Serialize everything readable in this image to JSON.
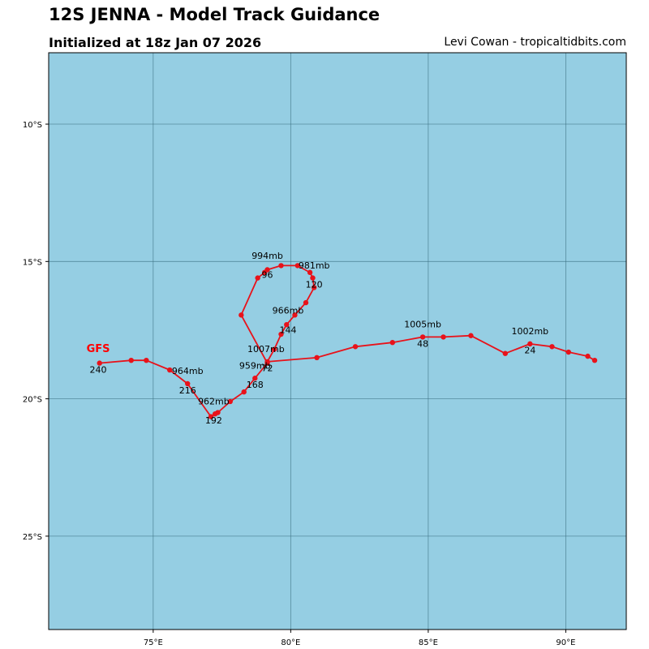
{
  "header": {
    "title": "12S JENNA - Model Track Guidance",
    "subtitle": "Initialized at 18z Jan 07 2026",
    "credit": "Levi Cowan - tropicaltidbits.com"
  },
  "map": {
    "ocean_color": "#95cee3",
    "grid_color": "#3b6f80",
    "track_color": "#e8121a",
    "lon_range": [
      71.2,
      92.2
    ],
    "lat_range": [
      -28.4,
      -7.4
    ],
    "lon_ticks": [
      {
        "v": 75,
        "label": "75°E"
      },
      {
        "v": 80,
        "label": "80°E"
      },
      {
        "v": 85,
        "label": "85°E"
      },
      {
        "v": 90,
        "label": "90°E"
      }
    ],
    "lat_ticks": [
      {
        "v": -10,
        "label": "10°S"
      },
      {
        "v": -15,
        "label": "15°S"
      },
      {
        "v": -20,
        "label": "20°S"
      },
      {
        "v": -25,
        "label": "25°S"
      }
    ]
  },
  "track": {
    "model": "GFS",
    "model_anchor": {
      "lon": 73.0,
      "lat": -18.3
    },
    "points": [
      {
        "lon": 91.05,
        "lat": -18.6
      },
      {
        "lon": 90.8,
        "lat": -18.45
      },
      {
        "lon": 90.1,
        "lat": -18.3
      },
      {
        "lon": 89.5,
        "lat": -18.1
      },
      {
        "lon": 88.7,
        "lat": -18.0
      },
      {
        "lon": 87.8,
        "lat": -18.35
      },
      {
        "lon": 86.55,
        "lat": -17.7
      },
      {
        "lon": 85.55,
        "lat": -17.75
      },
      {
        "lon": 84.8,
        "lat": -17.75
      },
      {
        "lon": 83.7,
        "lat": -17.95
      },
      {
        "lon": 82.35,
        "lat": -18.1
      },
      {
        "lon": 80.95,
        "lat": -18.5
      },
      {
        "lon": 79.15,
        "lat": -18.65
      },
      {
        "lon": 79.4,
        "lat": -18.2
      },
      {
        "lon": 79.65,
        "lat": -17.65
      },
      {
        "lon": 79.85,
        "lat": -17.3
      },
      {
        "lon": 80.15,
        "lat": -16.95
      },
      {
        "lon": 80.55,
        "lat": -16.5
      },
      {
        "lon": 80.85,
        "lat": -15.95
      },
      {
        "lon": 80.8,
        "lat": -15.6
      },
      {
        "lon": 80.7,
        "lat": -15.4
      },
      {
        "lon": 80.25,
        "lat": -15.15
      },
      {
        "lon": 79.65,
        "lat": -15.15
      },
      {
        "lon": 79.15,
        "lat": -15.3
      },
      {
        "lon": 79.05,
        "lat": -15.4
      },
      {
        "lon": 78.8,
        "lat": -15.6
      },
      {
        "lon": 78.2,
        "lat": -16.95
      },
      {
        "lon": 79.15,
        "lat": -18.7
      },
      {
        "lon": 78.7,
        "lat": -19.25
      },
      {
        "lon": 78.3,
        "lat": -19.75
      },
      {
        "lon": 77.8,
        "lat": -20.1
      },
      {
        "lon": 77.35,
        "lat": -20.5
      },
      {
        "lon": 77.25,
        "lat": -20.55
      },
      {
        "lon": 77.1,
        "lat": -20.65
      },
      {
        "lon": 76.25,
        "lat": -19.45
      },
      {
        "lon": 75.6,
        "lat": -18.95
      },
      {
        "lon": 74.75,
        "lat": -18.6
      },
      {
        "lon": 74.2,
        "lat": -18.6
      },
      {
        "lon": 73.05,
        "lat": -18.7
      }
    ],
    "labels": [
      {
        "text": "1002mb",
        "lon": 88.7,
        "lat": -17.65
      },
      {
        "text": "24",
        "lon": 88.7,
        "lat": -18.35
      },
      {
        "text": "1005mb",
        "lon": 84.8,
        "lat": -17.4
      },
      {
        "text": "48",
        "lon": 84.8,
        "lat": -18.1
      },
      {
        "text": "1007mb",
        "lon": 79.1,
        "lat": -18.3
      },
      {
        "text": "72",
        "lon": 79.15,
        "lat": -19.0
      },
      {
        "text": "966mb",
        "lon": 79.9,
        "lat": -16.9
      },
      {
        "text": "144",
        "lon": 79.9,
        "lat": -17.6
      },
      {
        "text": "981mb",
        "lon": 80.85,
        "lat": -15.25
      },
      {
        "text": "120",
        "lon": 80.85,
        "lat": -15.95
      },
      {
        "text": "994mb",
        "lon": 79.15,
        "lat": -14.9
      },
      {
        "text": "96",
        "lon": 79.15,
        "lat": -15.6
      },
      {
        "text": "959mb",
        "lon": 78.7,
        "lat": -18.9
      },
      {
        "text": "168",
        "lon": 78.7,
        "lat": -19.6
      },
      {
        "text": "964mb",
        "lon": 76.25,
        "lat": -19.1
      },
      {
        "text": "216",
        "lon": 76.25,
        "lat": -19.8
      },
      {
        "text": "962mb",
        "lon": 77.2,
        "lat": -20.2
      },
      {
        "text": "192",
        "lon": 77.2,
        "lat": -20.9
      },
      {
        "text": "240",
        "lon": 73.0,
        "lat": -19.05
      }
    ]
  }
}
